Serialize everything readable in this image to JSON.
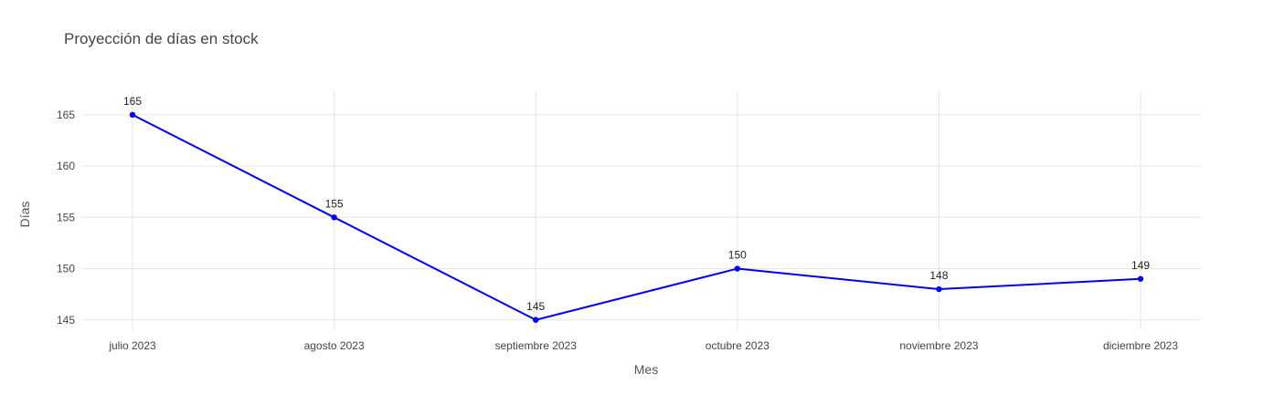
{
  "chart_data": {
    "type": "line",
    "title": "Proyección de días en stock",
    "xlabel": "Mes",
    "ylabel": "Días",
    "categories": [
      "julio 2023",
      "agosto 2023",
      "septiembre 2023",
      "octubre 2023",
      "noviembre 2023",
      "diciembre 2023"
    ],
    "series": [
      {
        "values": [
          165,
          155,
          145,
          150,
          148,
          149
        ],
        "data_labels": [
          "165",
          "155",
          "145",
          "150",
          "148",
          "149"
        ],
        "color": "#0000ee"
      }
    ],
    "yticks": [
      "145",
      "150",
      "155",
      "160",
      "165"
    ],
    "ylim": [
      144.0,
      167.3
    ],
    "grid": true,
    "legend": false
  }
}
